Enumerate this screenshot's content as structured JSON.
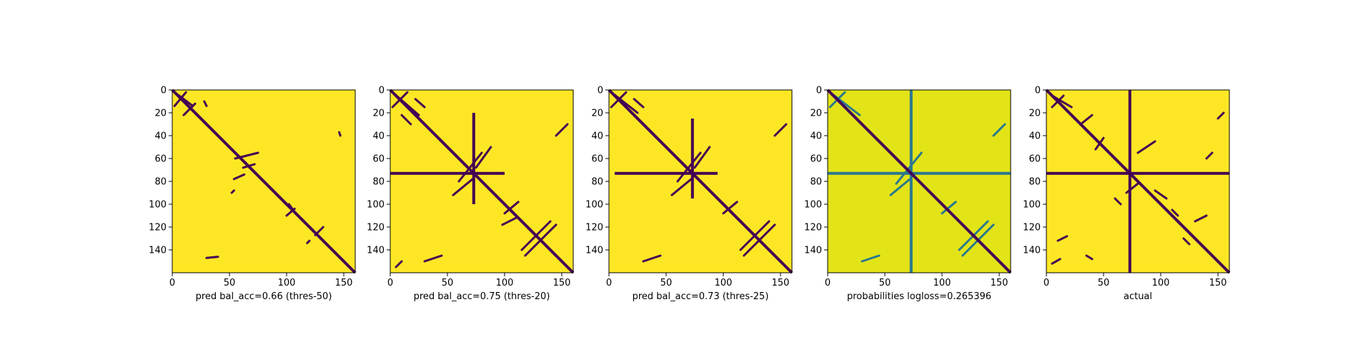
{
  "chart_data": [
    {
      "type": "heatmap",
      "xlabel": "pred bal_acc=0.66 (thres-50)",
      "xlim": [
        0,
        160
      ],
      "ylim": [
        0,
        160
      ],
      "xticks": [
        "0",
        "50",
        "100",
        "150"
      ],
      "yticks": [
        "0",
        "20",
        "40",
        "60",
        "80",
        "100",
        "120",
        "140"
      ],
      "colors": {
        "background": "#fde725",
        "contact": "#440154"
      },
      "features": {
        "diagonal": {
          "from": 0,
          "to": 160
        },
        "curves": [
          {
            "from": [
              2,
              2
            ],
            "to": [
              18,
              14
            ]
          },
          {
            "from": [
              12,
              2
            ],
            "to": [
              2,
              14
            ]
          },
          {
            "from": [
              20,
              12
            ],
            "to": [
              10,
              22
            ]
          },
          {
            "from": [
              28,
              10
            ],
            "to": [
              30,
              14
            ]
          },
          {
            "from": [
              55,
              60
            ],
            "to": [
              75,
              55
            ]
          },
          {
            "from": [
              62,
              68
            ],
            "to": [
              72,
              65
            ]
          },
          {
            "from": [
              54,
              78
            ],
            "to": [
              63,
              74
            ]
          },
          {
            "from": [
              52,
              90
            ],
            "to": [
              54,
              88
            ]
          },
          {
            "from": [
              102,
              100
            ],
            "to": [
              108,
              108
            ]
          },
          {
            "from": [
              100,
              110
            ],
            "to": [
              107,
              104
            ]
          },
          {
            "from": [
              132,
              120
            ],
            "to": [
              125,
              127
            ]
          },
          {
            "from": [
              120,
              132
            ],
            "to": [
              118,
              134
            ]
          },
          {
            "from": [
              146,
              37
            ],
            "to": [
              147,
              40
            ]
          },
          {
            "from": [
              30,
              147
            ],
            "to": [
              40,
              146
            ]
          }
        ],
        "rowlines": [],
        "collines": [],
        "blobs": []
      }
    },
    {
      "type": "heatmap",
      "xlabel": "pred bal_acc=0.75 (thres-20)",
      "xlim": [
        0,
        160
      ],
      "ylim": [
        0,
        160
      ],
      "xticks": [
        "0",
        "50",
        "100",
        "150"
      ],
      "yticks": [
        "0",
        "20",
        "40",
        "60",
        "80",
        "100",
        "120",
        "140"
      ],
      "colors": {
        "background": "#fde725",
        "contact": "#440154"
      },
      "features": {
        "diagonal": {
          "from": 0,
          "to": 160
        },
        "curves": [
          {
            "from": [
              2,
              2
            ],
            "to": [
              25,
              22
            ]
          },
          {
            "from": [
              15,
              2
            ],
            "to": [
              2,
              15
            ]
          },
          {
            "from": [
              22,
              8
            ],
            "to": [
              30,
              15
            ]
          },
          {
            "from": [
              10,
              22
            ],
            "to": [
              18,
              30
            ]
          },
          {
            "from": [
              60,
              80
            ],
            "to": [
              80,
              55
            ]
          },
          {
            "from": [
              55,
              92
            ],
            "to": [
              72,
              78
            ]
          },
          {
            "from": [
              88,
              50
            ],
            "to": [
              75,
              68
            ]
          },
          {
            "from": [
              100,
              108
            ],
            "to": [
              112,
              98
            ]
          },
          {
            "from": [
              98,
              118
            ],
            "to": [
              110,
              112
            ]
          },
          {
            "from": [
              115,
              140
            ],
            "to": [
              140,
              115
            ]
          },
          {
            "from": [
              118,
              145
            ],
            "to": [
              145,
              118
            ]
          },
          {
            "from": [
              145,
              40
            ],
            "to": [
              155,
              30
            ]
          },
          {
            "from": [
              30,
              150
            ],
            "to": [
              45,
              145
            ]
          },
          {
            "from": [
              5,
              155
            ],
            "to": [
              10,
              150
            ]
          }
        ],
        "rowlines": [
          {
            "y": 73,
            "from": 0,
            "to": 100
          }
        ],
        "collines": [
          {
            "x": 73,
            "from": 20,
            "to": 100
          }
        ],
        "blobs": []
      }
    },
    {
      "type": "heatmap",
      "xlabel": "pred bal_acc=0.73 (thres-25)",
      "xlim": [
        0,
        160
      ],
      "ylim": [
        0,
        160
      ],
      "xticks": [
        "0",
        "50",
        "100",
        "150"
      ],
      "yticks": [
        "0",
        "20",
        "40",
        "60",
        "80",
        "100",
        "120",
        "140"
      ],
      "colors": {
        "background": "#fde725",
        "contact": "#440154"
      },
      "features": {
        "diagonal": {
          "from": 0,
          "to": 160
        },
        "curves": [
          {
            "from": [
              2,
              2
            ],
            "to": [
              25,
              20
            ]
          },
          {
            "from": [
              15,
              2
            ],
            "to": [
              2,
              15
            ]
          },
          {
            "from": [
              22,
              8
            ],
            "to": [
              30,
              15
            ]
          },
          {
            "from": [
              60,
              80
            ],
            "to": [
              80,
              55
            ]
          },
          {
            "from": [
              55,
              92
            ],
            "to": [
              72,
              78
            ]
          },
          {
            "from": [
              88,
              50
            ],
            "to": [
              75,
              68
            ]
          },
          {
            "from": [
              100,
              108
            ],
            "to": [
              112,
              98
            ]
          },
          {
            "from": [
              115,
              140
            ],
            "to": [
              140,
              115
            ]
          },
          {
            "from": [
              118,
              145
            ],
            "to": [
              145,
              118
            ]
          },
          {
            "from": [
              145,
              40
            ],
            "to": [
              155,
              30
            ]
          },
          {
            "from": [
              30,
              150
            ],
            "to": [
              45,
              145
            ]
          }
        ],
        "rowlines": [
          {
            "y": 73,
            "from": 5,
            "to": 95
          }
        ],
        "collines": [
          {
            "x": 73,
            "from": 25,
            "to": 95
          }
        ],
        "blobs": []
      }
    },
    {
      "type": "heatmap",
      "xlabel": "probabilities logloss=0.265396",
      "xlim": [
        0,
        160
      ],
      "ylim": [
        0,
        160
      ],
      "xticks": [
        "0",
        "50",
        "100",
        "150"
      ],
      "yticks": [
        "0",
        "20",
        "40",
        "60",
        "80",
        "100",
        "120",
        "140"
      ],
      "colors": {
        "background": "#e2e418",
        "contact": "#2a788e",
        "strong": "#440154",
        "mid": "#b5de2b"
      },
      "features": {
        "diagonal": {
          "from": 0,
          "to": 160
        },
        "curves": [
          {
            "from": [
              2,
              2
            ],
            "to": [
              28,
              22
            ]
          },
          {
            "from": [
              15,
              2
            ],
            "to": [
              2,
              15
            ]
          },
          {
            "from": [
              60,
              82
            ],
            "to": [
              82,
              55
            ]
          },
          {
            "from": [
              55,
              92
            ],
            "to": [
              72,
              78
            ]
          },
          {
            "from": [
              100,
              108
            ],
            "to": [
              112,
              98
            ]
          },
          {
            "from": [
              115,
              140
            ],
            "to": [
              140,
              115
            ]
          },
          {
            "from": [
              118,
              145
            ],
            "to": [
              145,
              118
            ]
          },
          {
            "from": [
              145,
              40
            ],
            "to": [
              155,
              30
            ]
          },
          {
            "from": [
              30,
              150
            ],
            "to": [
              45,
              145
            ]
          }
        ],
        "rowlines": [
          {
            "y": 73,
            "from": 0,
            "to": 160
          }
        ],
        "collines": [
          {
            "x": 73,
            "from": 0,
            "to": 160
          }
        ],
        "blobs": []
      }
    },
    {
      "type": "heatmap",
      "xlabel": "actual",
      "xlim": [
        0,
        160
      ],
      "ylim": [
        0,
        160
      ],
      "xticks": [
        "0",
        "50",
        "100",
        "150"
      ],
      "yticks": [
        "0",
        "20",
        "40",
        "60",
        "80",
        "100",
        "120",
        "140"
      ],
      "colors": {
        "background": "#fde725",
        "contact": "#440154"
      },
      "features": {
        "diagonal": {
          "from": 0,
          "to": 160
        },
        "curves": [
          {
            "from": [
              5,
              5
            ],
            "to": [
              22,
              15
            ]
          },
          {
            "from": [
              15,
              5
            ],
            "to": [
              5,
              15
            ]
          },
          {
            "from": [
              40,
              22
            ],
            "to": [
              30,
              30
            ]
          },
          {
            "from": [
              45,
              45
            ],
            "to": [
              55,
              55
            ]
          },
          {
            "from": [
              50,
              42
            ],
            "to": [
              43,
              52
            ]
          },
          {
            "from": [
              80,
              55
            ],
            "to": [
              95,
              45
            ]
          },
          {
            "from": [
              70,
              90
            ],
            "to": [
              80,
              82
            ]
          },
          {
            "from": [
              60,
              95
            ],
            "to": [
              65,
              100
            ]
          },
          {
            "from": [
              95,
              88
            ],
            "to": [
              105,
              95
            ]
          },
          {
            "from": [
              110,
              105
            ],
            "to": [
              115,
              110
            ]
          },
          {
            "from": [
              130,
              115
            ],
            "to": [
              140,
              110
            ]
          },
          {
            "from": [
              120,
              130
            ],
            "to": [
              125,
              135
            ]
          },
          {
            "from": [
              10,
              132
            ],
            "to": [
              18,
              128
            ]
          },
          {
            "from": [
              35,
              145
            ],
            "to": [
              40,
              148
            ]
          },
          {
            "from": [
              5,
              152
            ],
            "to": [
              12,
              148
            ]
          },
          {
            "from": [
              150,
              25
            ],
            "to": [
              155,
              20
            ]
          },
          {
            "from": [
              140,
              60
            ],
            "to": [
              145,
              55
            ]
          }
        ],
        "rowlines": [
          {
            "y": 73,
            "from": 0,
            "to": 160
          }
        ],
        "collines": [
          {
            "x": 73,
            "from": 0,
            "to": 160
          }
        ],
        "blobs": []
      }
    }
  ]
}
